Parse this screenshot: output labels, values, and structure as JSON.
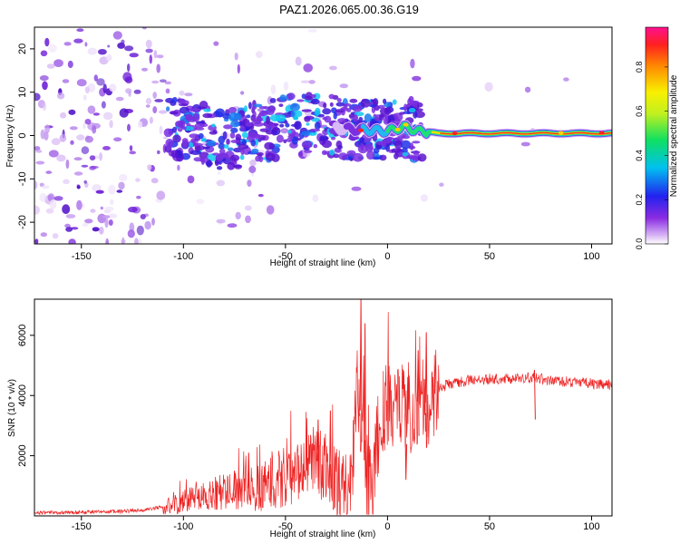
{
  "title": "PAZ1.2026.065.00.36.G19",
  "chart_data": [
    {
      "type": "heatmap",
      "xlabel": "Height of straight line (km)",
      "ylabel": "Frequency (Hz)",
      "xlim": [
        -173,
        110
      ],
      "ylim": [
        -25,
        25
      ],
      "xticks": [
        -150,
        -100,
        -50,
        0,
        50,
        100
      ],
      "yticks": [
        -20,
        -10,
        0,
        10,
        20
      ],
      "colorbar": {
        "label": "Normalized spectral amplitude",
        "range": [
          0,
          0.98
        ],
        "ticks": [
          0.0,
          0.2,
          0.4,
          0.6,
          0.8
        ],
        "tick_labels": [
          "0.0",
          "0.2",
          "0.4",
          "0.6",
          "0.8"
        ],
        "colormap": "rainbow"
      },
      "ridge": [
        {
          "x": -105,
          "y": 2
        },
        {
          "x": -80,
          "y": -1
        },
        {
          "x": -60,
          "y": 1
        },
        {
          "x": -40,
          "y": 3
        },
        {
          "x": -20,
          "y": 1.5
        },
        {
          "x": 0,
          "y": 1
        },
        {
          "x": 8,
          "y": 2
        },
        {
          "x": 15,
          "y": 1
        },
        {
          "x": 25,
          "y": 0.5
        },
        {
          "x": 110,
          "y": 0.5
        }
      ]
    },
    {
      "type": "line",
      "xlabel": "Height of straight line (km)",
      "ylabel": "SNR (10 * v/v)",
      "xlim": [
        -173,
        110
      ],
      "ylim": [
        0,
        7200
      ],
      "xticks": [
        -150,
        -100,
        -50,
        0,
        50,
        100
      ],
      "yticks": [
        2000,
        4000,
        6000
      ],
      "color": "#ee2222",
      "x": [
        -173,
        -150,
        -130,
        -120,
        -110,
        -100,
        -95,
        -90,
        -85,
        -80,
        -75,
        -70,
        -65,
        -60,
        -55,
        -50,
        -45,
        -40,
        -35,
        -30,
        -25,
        -20,
        -17,
        -15,
        -13,
        -12,
        -10,
        -8,
        -5,
        -3,
        0,
        3,
        5,
        8,
        10,
        12,
        15,
        18,
        20,
        22,
        25,
        30,
        40,
        50,
        60,
        70,
        80,
        90,
        100,
        110
      ],
      "values": [
        100,
        120,
        150,
        200,
        300,
        450,
        600,
        700,
        750,
        800,
        850,
        900,
        950,
        1000,
        1100,
        1200,
        1400,
        1600,
        1900,
        1500,
        1000,
        800,
        1500,
        4500,
        3500,
        2500,
        1200,
        800,
        2500,
        3500,
        3800,
        3500,
        3700,
        3600,
        3200,
        3500,
        3800,
        3800,
        3700,
        3900,
        4200,
        4400,
        4500,
        4550,
        4550,
        4600,
        4500,
        4450,
        4400,
        4350
      ],
      "spikes": [
        {
          "x": -13,
          "y": 7200
        },
        {
          "x": -11,
          "y": 6400
        },
        {
          "x": 19,
          "y": 6100
        },
        {
          "x": 15,
          "y": 5500
        },
        {
          "x": -28,
          "y": 3500
        },
        {
          "x": -34,
          "y": 3200
        },
        {
          "x": -68,
          "y": 2100
        },
        {
          "x": -75,
          "y": 1500
        },
        {
          "x": 9,
          "y": 1200
        },
        {
          "x": 72,
          "y": 4850
        }
      ]
    }
  ]
}
